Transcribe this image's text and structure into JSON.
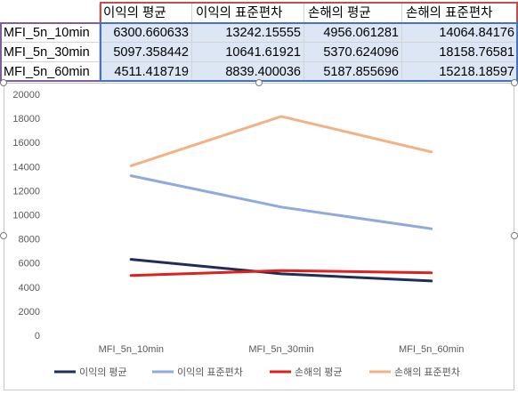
{
  "table": {
    "headers": [
      "이익의 평균",
      "이익의 표준편차",
      "손해의 평균",
      "손해의 표준편차"
    ],
    "rows": [
      {
        "label": "MFI_5n_10min",
        "values": [
          "6300.660633",
          "13242.15555",
          "4956.061281",
          "14064.84176"
        ]
      },
      {
        "label": "MFI_5n_30min",
        "values": [
          "5097.358442",
          "10641.61921",
          "5370.624096",
          "18158.76581"
        ]
      },
      {
        "label": "MFI_5n_60min",
        "values": [
          "4511.418719",
          "8839.400036",
          "5187.855696",
          "15218.18597"
        ]
      }
    ]
  },
  "chart_data": {
    "type": "line",
    "categories": [
      "MFI_5n_10min",
      "MFI_5n_30min",
      "MFI_5n_60min"
    ],
    "ylim": [
      0,
      20000
    ],
    "yticks": [
      "0",
      "2000",
      "4000",
      "6000",
      "8000",
      "10000",
      "12000",
      "14000",
      "16000",
      "18000",
      "20000"
    ],
    "grid": false,
    "legend_position": "bottom",
    "series": [
      {
        "name": "이익의 평균",
        "color": "#1f2d5a",
        "values": [
          6300.660633,
          5097.358442,
          4511.418719
        ]
      },
      {
        "name": "이익의 표준편차",
        "color": "#8faadc",
        "values": [
          13242.15555,
          10641.61921,
          8839.400036
        ]
      },
      {
        "name": "손해의 평균",
        "color": "#e0201b",
        "values": [
          4956.061281,
          5370.624096,
          5187.855696
        ]
      },
      {
        "name": "손해의 표준편차",
        "color": "#f4b183",
        "values": [
          14064.84176,
          18158.76581,
          15218.18597
        ]
      }
    ]
  }
}
